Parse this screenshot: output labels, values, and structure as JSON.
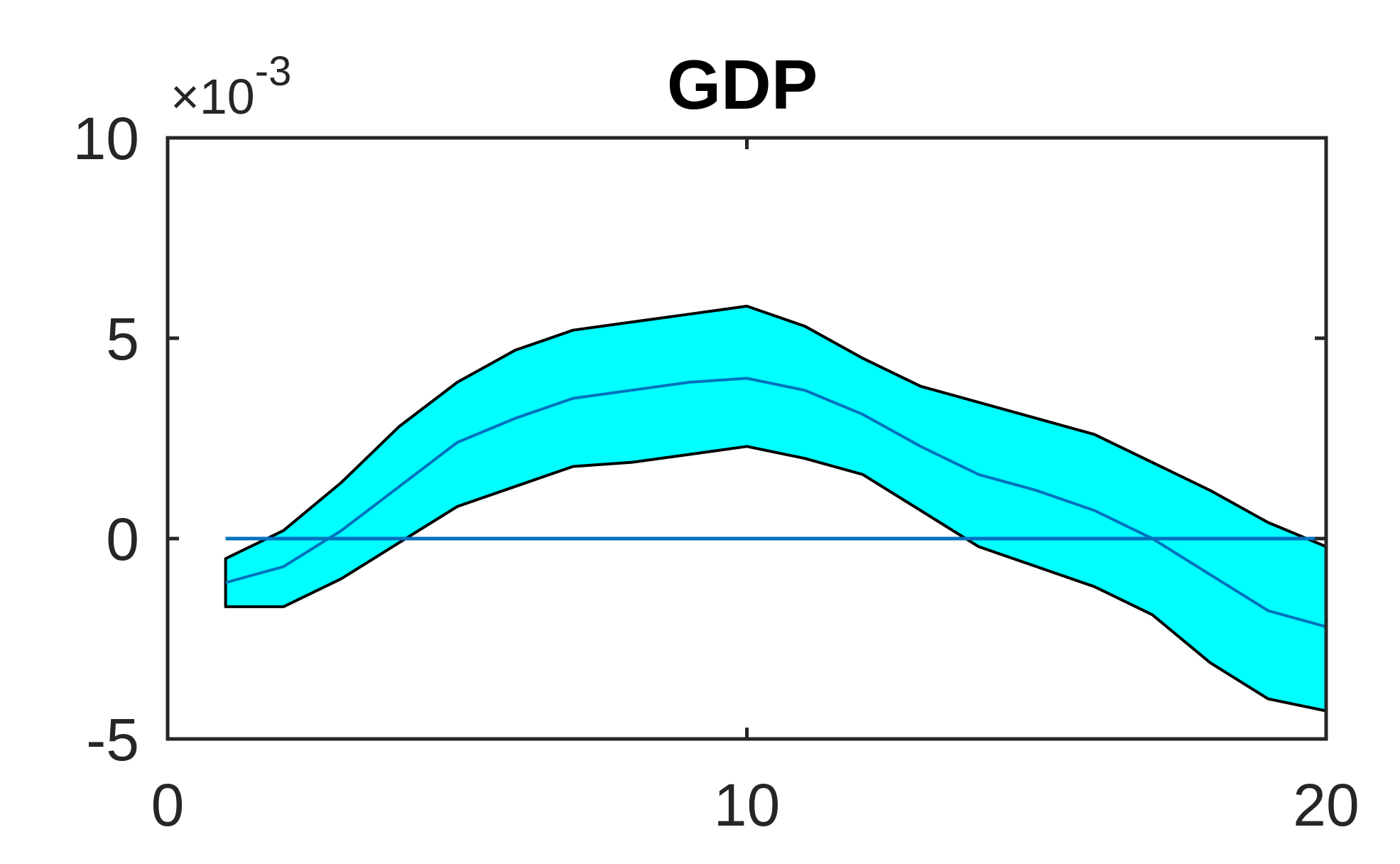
{
  "chart_data": {
    "type": "area",
    "title": "GDP",
    "xlabel": "",
    "ylabel": "",
    "exponent_label": {
      "base": "×10",
      "power": "-3"
    },
    "xlim": [
      0,
      20
    ],
    "ylim": [
      -0.005,
      0.01
    ],
    "xticks": [
      0,
      10,
      20
    ],
    "xtick_labels": [
      "0",
      "10",
      "20"
    ],
    "yticks": [
      -0.005,
      0,
      0.005,
      0.01
    ],
    "ytick_labels": [
      "-5",
      "0",
      "5",
      "10"
    ],
    "grid": false,
    "band_color": "#00ffff",
    "band_edge_color": "#000000",
    "line_color": "#0072bd",
    "x": [
      1,
      2,
      3,
      4,
      5,
      6,
      7,
      8,
      9,
      10,
      11,
      12,
      13,
      14,
      15,
      16,
      17,
      18,
      19,
      20
    ],
    "upper": [
      -0.0005,
      0.0002,
      0.0014,
      0.0028,
      0.0039,
      0.0047,
      0.0052,
      0.0054,
      0.0056,
      0.0058,
      0.0053,
      0.0045,
      0.0038,
      0.0034,
      0.003,
      0.0026,
      0.0019,
      0.0012,
      0.0004,
      -0.0002
    ],
    "lower": [
      -0.0017,
      -0.0017,
      -0.001,
      -0.0001,
      0.0008,
      0.0013,
      0.0018,
      0.0019,
      0.0021,
      0.0023,
      0.002,
      0.0016,
      0.0007,
      -0.0002,
      -0.0007,
      -0.0012,
      -0.0019,
      -0.0031,
      -0.004,
      -0.0043
    ],
    "median": [
      -0.0011,
      -0.0007,
      0.0002,
      0.0013,
      0.0024,
      0.003,
      0.0035,
      0.0037,
      0.0039,
      0.004,
      0.0037,
      0.0031,
      0.0023,
      0.0016,
      0.0012,
      0.0007,
      0.0,
      -0.0009,
      -0.0018,
      -0.0022
    ],
    "zero_line": {
      "x": [
        1,
        20
      ],
      "y": [
        0,
        0
      ]
    }
  }
}
